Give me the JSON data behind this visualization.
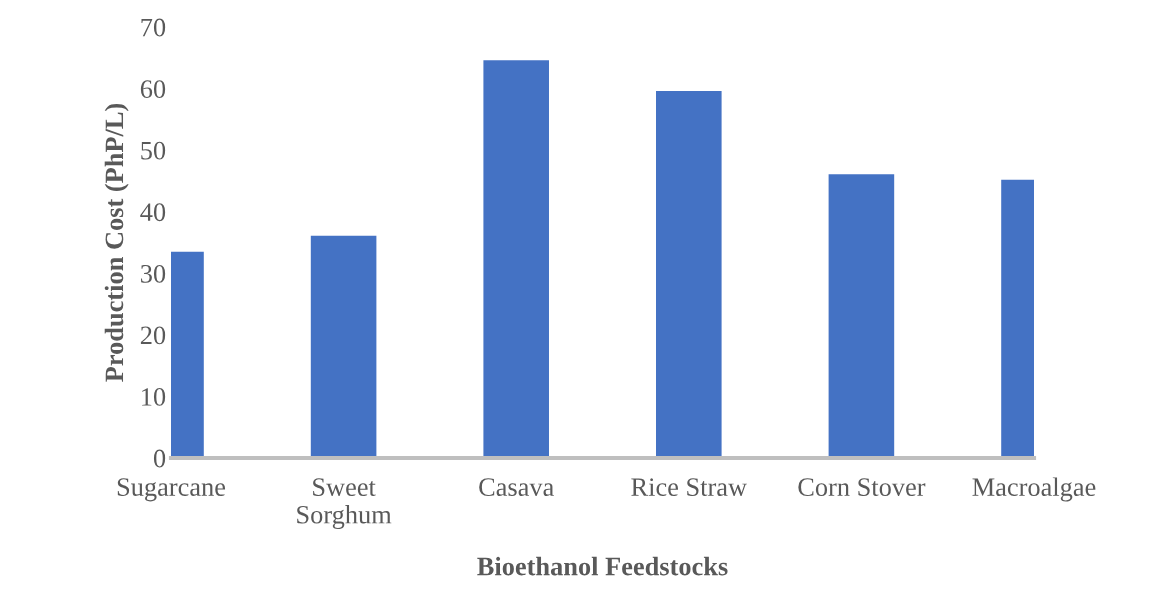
{
  "chart_data": {
    "type": "bar",
    "xlabel": "Bioethanol Feedstocks",
    "ylabel": "Production Cost (PhP/L)",
    "categories": [
      "Sugarcane",
      "Sweet\nSorghum",
      "Casava",
      "Rice Straw",
      "Corn Stover",
      "Macroalgae"
    ],
    "values": [
      33.5,
      36.1,
      64.6,
      59.6,
      46.1,
      45.2
    ],
    "color": "#4472c4",
    "ylim": [
      0,
      70
    ],
    "yticks": [
      0,
      10,
      20,
      30,
      40,
      50,
      60,
      70
    ],
    "grid": false
  }
}
